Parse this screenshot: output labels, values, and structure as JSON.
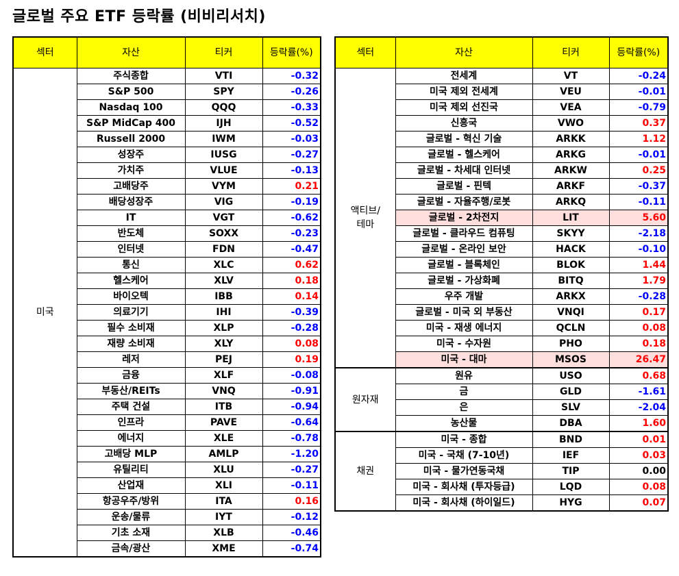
{
  "title": "글로벌 주요 ETF 등락률 (비비리서치)",
  "headers": {
    "sector": "섹터",
    "asset": "자산",
    "ticker": "티커",
    "change": "등락률(%)"
  },
  "left": {
    "sector": "미국",
    "rows": [
      {
        "asset": "주식종합",
        "ticker": "VTI",
        "change": "-0.32"
      },
      {
        "asset": "S&P 500",
        "ticker": "SPY",
        "change": "-0.26"
      },
      {
        "asset": "Nasdaq 100",
        "ticker": "QQQ",
        "change": "-0.33"
      },
      {
        "asset": "S&P MidCap 400",
        "ticker": "IJH",
        "change": "-0.52"
      },
      {
        "asset": "Russell 2000",
        "ticker": "IWM",
        "change": "-0.03"
      },
      {
        "asset": "성장주",
        "ticker": "IUSG",
        "change": "-0.27"
      },
      {
        "asset": "가치주",
        "ticker": "VLUE",
        "change": "-0.13"
      },
      {
        "asset": "고배당주",
        "ticker": "VYM",
        "change": "0.21"
      },
      {
        "asset": "배당성장주",
        "ticker": "VIG",
        "change": "-0.19"
      },
      {
        "asset": "IT",
        "ticker": "VGT",
        "change": "-0.62"
      },
      {
        "asset": "반도체",
        "ticker": "SOXX",
        "change": "-0.23"
      },
      {
        "asset": "인터넷",
        "ticker": "FDN",
        "change": "-0.47"
      },
      {
        "asset": "통신",
        "ticker": "XLC",
        "change": "0.62"
      },
      {
        "asset": "헬스케어",
        "ticker": "XLV",
        "change": "0.18"
      },
      {
        "asset": "바이오텍",
        "ticker": "IBB",
        "change": "0.14"
      },
      {
        "asset": "의료기기",
        "ticker": "IHI",
        "change": "-0.39"
      },
      {
        "asset": "필수 소비재",
        "ticker": "XLP",
        "change": "-0.28"
      },
      {
        "asset": "재량 소비재",
        "ticker": "XLY",
        "change": "0.08"
      },
      {
        "asset": "레저",
        "ticker": "PEJ",
        "change": "0.19"
      },
      {
        "asset": "금융",
        "ticker": "XLF",
        "change": "-0.08"
      },
      {
        "asset": "부동산/REITs",
        "ticker": "VNQ",
        "change": "-0.91"
      },
      {
        "asset": "주택 건설",
        "ticker": "ITB",
        "change": "-0.94"
      },
      {
        "asset": "인프라",
        "ticker": "PAVE",
        "change": "-0.64"
      },
      {
        "asset": "에너지",
        "ticker": "XLE",
        "change": "-0.78"
      },
      {
        "asset": "고배당 MLP",
        "ticker": "AMLP",
        "change": "-1.20"
      },
      {
        "asset": "유틸리티",
        "ticker": "XLU",
        "change": "-0.27"
      },
      {
        "asset": "산업재",
        "ticker": "XLI",
        "change": "-0.11"
      },
      {
        "asset": "항공우주/방위",
        "ticker": "ITA",
        "change": "0.16"
      },
      {
        "asset": "운송/물류",
        "ticker": "IYT",
        "change": "-0.12"
      },
      {
        "asset": "기초 소재",
        "ticker": "XLB",
        "change": "-0.46"
      },
      {
        "asset": "금속/광산",
        "ticker": "XME",
        "change": "-0.74"
      }
    ]
  },
  "right": {
    "groups": [
      {
        "sector": "액티브/\n테마",
        "rows": [
          {
            "asset": "전세계",
            "ticker": "VT",
            "change": "-0.24"
          },
          {
            "asset": "미국 제외 전세계",
            "ticker": "VEU",
            "change": "-0.01"
          },
          {
            "asset": "미국 제외 선진국",
            "ticker": "VEA",
            "change": "-0.79"
          },
          {
            "asset": "신흥국",
            "ticker": "VWO",
            "change": "0.37"
          },
          {
            "asset": "글로벌 - 혁신 기술",
            "ticker": "ARKK",
            "change": "1.12"
          },
          {
            "asset": "글로벌 - 헬스케어",
            "ticker": "ARKG",
            "change": "-0.01"
          },
          {
            "asset": "글로벌 - 차세대 인터넷",
            "ticker": "ARKW",
            "change": "0.25"
          },
          {
            "asset": "글로벌 - 핀텍",
            "ticker": "ARKF",
            "change": "-0.37"
          },
          {
            "asset": "글로벌 - 자율주행/로봇",
            "ticker": "ARKQ",
            "change": "-0.11"
          },
          {
            "asset": "글로벌 - 2차전지",
            "ticker": "LIT",
            "change": "5.60",
            "highlight": true
          },
          {
            "asset": "글로벌 - 클라우드 컴퓨팅",
            "ticker": "SKYY",
            "change": "-2.18"
          },
          {
            "asset": "글로벌 - 온라인 보안",
            "ticker": "HACK",
            "change": "-0.10"
          },
          {
            "asset": "글로벌 - 블록체인",
            "ticker": "BLOK",
            "change": "1.44"
          },
          {
            "asset": "글로벌 - 가상화폐",
            "ticker": "BITQ",
            "change": "1.79"
          },
          {
            "asset": "우주 개발",
            "ticker": "ARKX",
            "change": "-0.28"
          },
          {
            "asset": "글로벌 - 미국 외 부동산",
            "ticker": "VNQI",
            "change": "0.17"
          },
          {
            "asset": "미국 - 재생 에너지",
            "ticker": "QCLN",
            "change": "0.08"
          },
          {
            "asset": "미국 - 수자원",
            "ticker": "PHO",
            "change": "0.18"
          },
          {
            "asset": "미국 - 대마",
            "ticker": "MSOS",
            "change": "26.47",
            "highlight": true
          }
        ]
      },
      {
        "sector": "원자재",
        "rows": [
          {
            "asset": "원유",
            "ticker": "USO",
            "change": "0.68"
          },
          {
            "asset": "금",
            "ticker": "GLD",
            "change": "-1.61"
          },
          {
            "asset": "은",
            "ticker": "SLV",
            "change": "-2.04"
          },
          {
            "asset": "농산물",
            "ticker": "DBA",
            "change": "1.60"
          }
        ]
      },
      {
        "sector": "채권",
        "rows": [
          {
            "asset": "미국 - 종합",
            "ticker": "BND",
            "change": "0.01"
          },
          {
            "asset": "미국 - 국채 (7-10년)",
            "ticker": "IEF",
            "change": "0.03"
          },
          {
            "asset": "미국 - 물가연동국채",
            "ticker": "TIP",
            "change": "0.00"
          },
          {
            "asset": "미국 - 회사채 (투자등급)",
            "ticker": "LQD",
            "change": "0.08"
          },
          {
            "asset": "미국 - 회사채 (하이일드)",
            "ticker": "HYG",
            "change": "0.07"
          }
        ]
      }
    ]
  }
}
